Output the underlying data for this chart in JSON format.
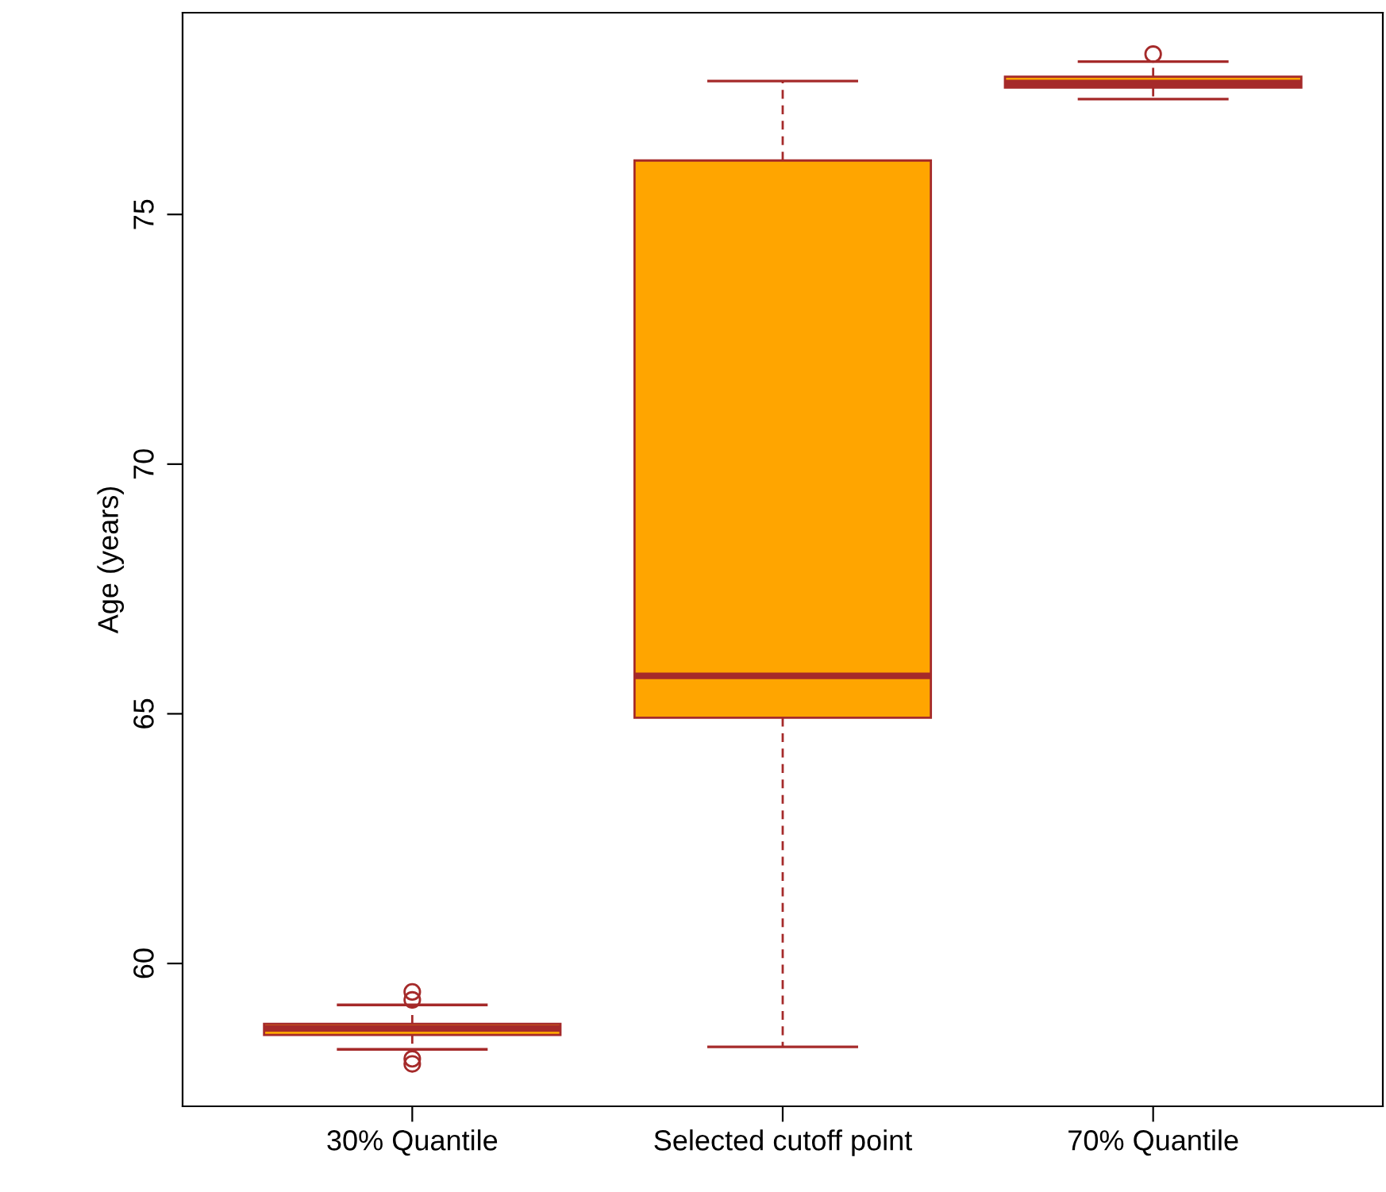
{
  "chart_data": {
    "type": "box",
    "ylabel": "Age (years)",
    "categories": [
      "30% Quantile",
      "Selected cutoff point",
      "70% Quantile"
    ],
    "boxes": [
      {
        "low": 58.28,
        "q1": 58.57,
        "median": 58.7,
        "q3": 58.79,
        "high": 59.17,
        "outliers": [
          59.43,
          59.27,
          58.09,
          57.99
        ]
      },
      {
        "low": 58.33,
        "q1": 64.92,
        "median": 65.76,
        "q3": 76.08,
        "high": 77.67
      },
      {
        "low": 77.31,
        "q1": 77.54,
        "median": 77.63,
        "q3": 77.76,
        "high": 78.06,
        "outliers": [
          78.21
        ]
      }
    ],
    "color": "#ffa500",
    "ylim": [
      57.14,
      79.04
    ],
    "yticks": [
      60,
      65,
      70,
      75
    ],
    "grid": false,
    "legend": false
  }
}
